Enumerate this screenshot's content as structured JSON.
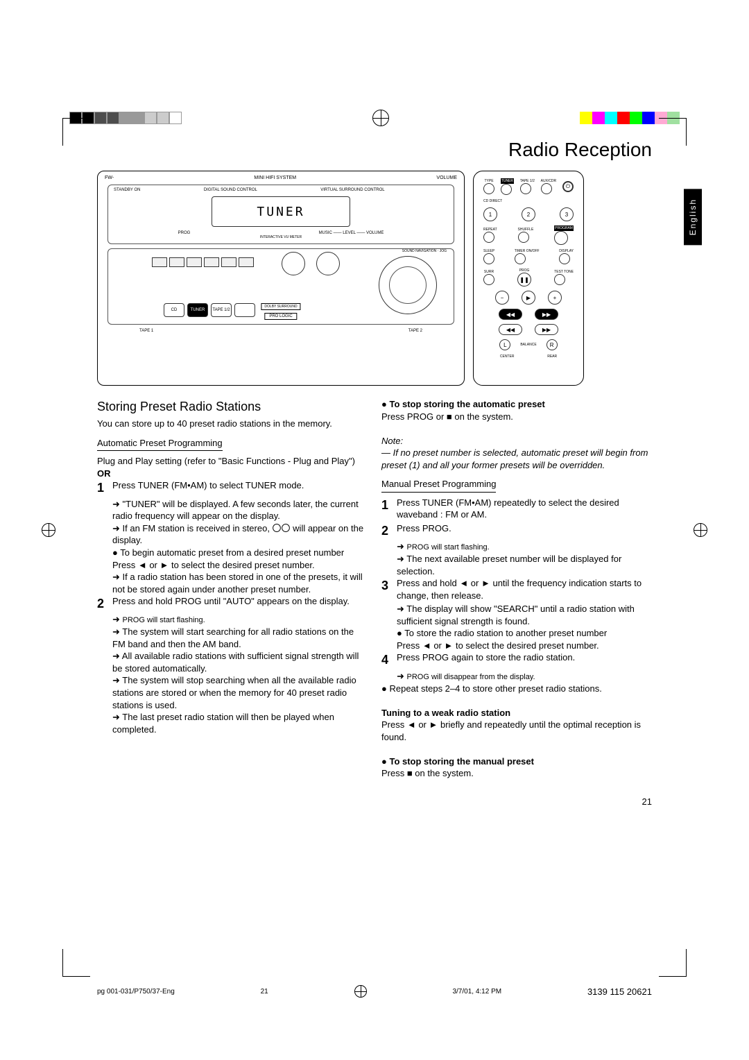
{
  "colorbar_left": [
    "#000000",
    "#000000",
    "#4d4d4d",
    "#4d4d4d",
    "#999999",
    "#999999",
    "#cccccc",
    "#cccccc",
    "#ffffff"
  ],
  "colorbar_right": [
    "#ffff00",
    "#ff00ff",
    "#00ffff",
    "#ff0000",
    "#00ff00",
    "#0000ff",
    "#ffaad4",
    "#a0e0a0"
  ],
  "page_title": "Radio Reception",
  "lang_tab": "English",
  "stereo": {
    "brand_left": "FW-",
    "brand_right": "MINI HIFI SYSTEM",
    "volume_label": "VOLUME",
    "standby": "STANDBY ON",
    "dsc1": "DIGITAL SOUND CONTROL",
    "dsc2": "VIRTUAL SURROUND CONTROL",
    "display_text": "TUNER",
    "prog": "PROG",
    "music_level_volume": "MUSIC —— LEVEL —— VOLUME",
    "vu": "INTERACTIVE VU METER",
    "nav": "SOUND NAVIGATION · JOG",
    "src_cd": "CD",
    "src_tuner": "TUNER",
    "src_tape": "TAPE 1/2",
    "pro_logic": "PRO LOGIC",
    "dolby": "DOLBY SURROUND"
  },
  "remote": {
    "tuner": "TUNER",
    "program": "PROGRAM",
    "repeat": "REPEAT",
    "shuffle": "SHUFFLE",
    "sleep": "SLEEP",
    "timer": "TIMER ON/OFF",
    "display": "DISPLAY",
    "surr": "SURR",
    "prog": "PROG",
    "center": "CENTER",
    "rear": "REAR",
    "balance": "BALANCE"
  },
  "left_col": {
    "heading": "Storing Preset Radio Stations",
    "intro": "You can store up to 40 preset radio stations in the memory.",
    "auto_head": "Automatic Preset Programming",
    "plug_play": "Plug and Play setting (refer to \"Basic Functions - Plug and Play\")",
    "or": "OR",
    "s1": "Press TUNER (FM•AM) to select TUNER mode.",
    "s1a": "\"TUNER\" will be displayed. A few seconds later, the current radio frequency will appear on the display.",
    "s1b": "If an FM station is received in stereo, 〇〇 will appear on the display.",
    "s1c_head": "To begin automatic preset from a desired preset number",
    "s1c": "Press ◄ or ► to select the desired preset number.",
    "s1d": "If a radio station has been stored in one of the presets, it will not be stored again under another preset number.",
    "s2": "Press and hold PROG until \"AUTO\" appears on the display.",
    "s2a": "PROG will start flashing.",
    "s2b": "The system will start searching for all radio stations on the FM band and then the AM band.",
    "s2c": "All available radio stations with sufficient signal strength will be stored automatically.",
    "s2d": "The system will stop searching when all the available radio stations are stored or when the memory for 40 preset radio stations is used.",
    "s2e": "The last preset radio station will then be played when completed."
  },
  "right_col": {
    "stop_auto_head": "To stop storing the automatic preset",
    "stop_auto": "Press PROG or ■ on the system.",
    "note_head": "Note:",
    "note": "— If no preset number is selected, automatic preset will begin from preset (1) and all your former presets will be overridden.",
    "manual_head": "Manual Preset Programming",
    "m1": "Press TUNER (FM•AM) repeatedly to select the desired waveband : FM or AM.",
    "m2": "Press PROG.",
    "m2a": "PROG will start flashing.",
    "m2b": "The next available preset number will be displayed for selection.",
    "m3": "Press and hold ◄ or ► until the frequency indication starts to change, then release.",
    "m3a": "The display will show \"SEARCH\" until a radio station with sufficient signal strength is found.",
    "m3b_head": "To store the radio station to another preset number",
    "m3b": "Press ◄ or ► to select the desired preset number.",
    "m4": "Press PROG again to store the radio station.",
    "m4a": "PROG will disappear from the display.",
    "m4b": "Repeat steps 2–4 to store other preset radio stations.",
    "weak_head": "Tuning to a weak radio station",
    "weak": "Press ◄ or ► briefly and repeatedly until the optimal reception is found.",
    "stop_man_head": "To stop storing the manual preset",
    "stop_man": "Press ■ on the system."
  },
  "page_number": "21",
  "footer": {
    "file": "pg 001-031/P750/37-Eng",
    "pg": "21",
    "date": "3/7/01, 4:12 PM",
    "code": "3139 115 20621"
  }
}
